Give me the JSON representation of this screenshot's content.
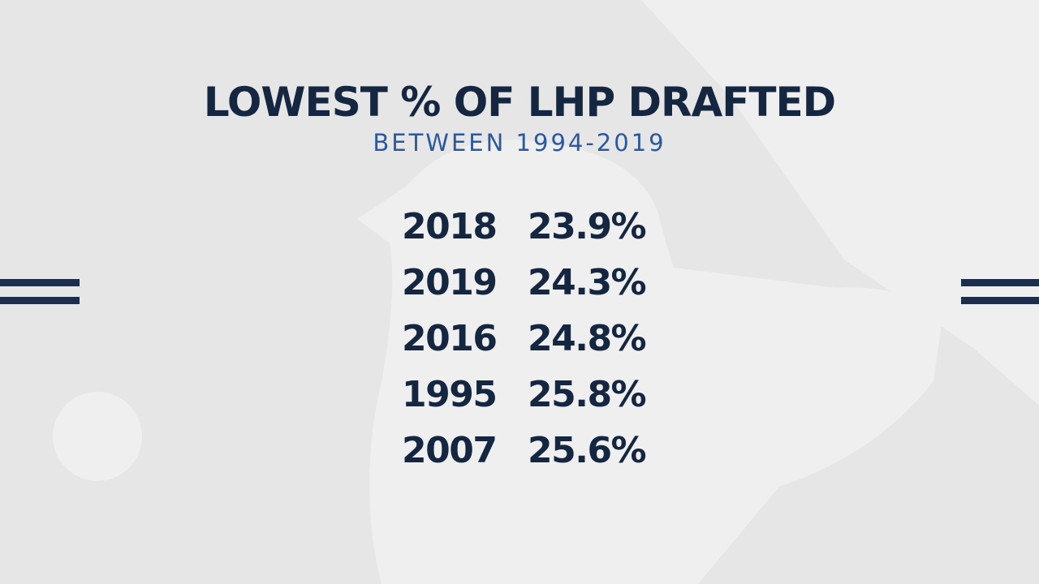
{
  "title": "LOWEST % OF LHP DRAFTED",
  "subtitle": "BETWEEN 1994-2019",
  "rows": [
    {
      "year": "2018",
      "pct": "23.9%"
    },
    {
      "year": "2019",
      "pct": "24.3%"
    },
    {
      "year": "2016",
      "pct": "24.8%"
    },
    {
      "year": "1995",
      "pct": "25.8%"
    },
    {
      "year": "2007",
      "pct": "25.6%"
    }
  ],
  "colors": {
    "background": "#e6e6e6",
    "logo_silhouette": "#efefef",
    "title_text": "#142640",
    "subtitle_text": "#2b59a0",
    "stripes": "#1c2e4c"
  },
  "icons": [
    "baseball-logo-watermark"
  ]
}
